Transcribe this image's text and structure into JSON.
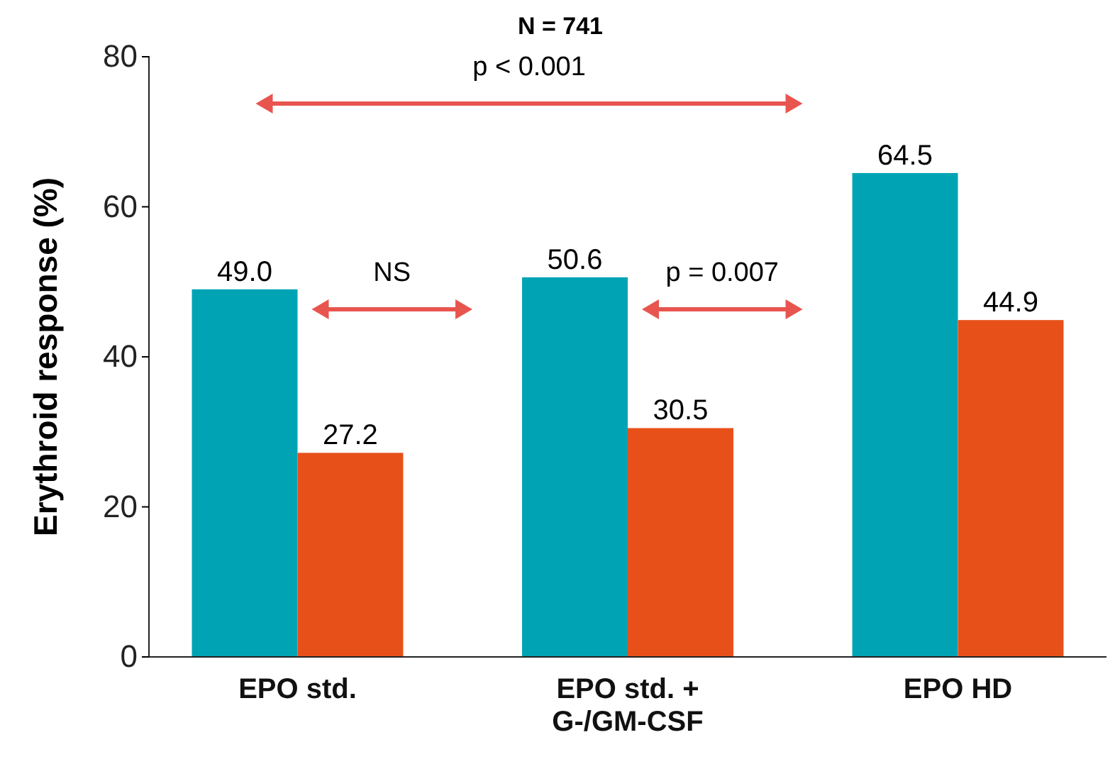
{
  "chart_data": {
    "type": "bar",
    "title": "N = 741",
    "ylabel": "Erythroid response (%)",
    "categories": [
      "EPO std.",
      "EPO std. + G-/GM-CSF",
      "EPO HD"
    ],
    "series": [
      {
        "color": "#00a3b4",
        "values": [
          49.0,
          50.6,
          64.5
        ],
        "value_labels": [
          "49.0",
          "50.6",
          "64.5"
        ]
      },
      {
        "color": "#e8501a",
        "values": [
          27.2,
          30.5,
          44.9
        ],
        "value_labels": [
          "27.2",
          "30.5",
          "44.9"
        ]
      }
    ],
    "ylim": [
      0,
      80
    ],
    "yticks": [
      0,
      20,
      40,
      60,
      80
    ],
    "grid": false,
    "annotations": [
      "NS",
      "p = 0.007",
      "p < 0.001"
    ]
  }
}
